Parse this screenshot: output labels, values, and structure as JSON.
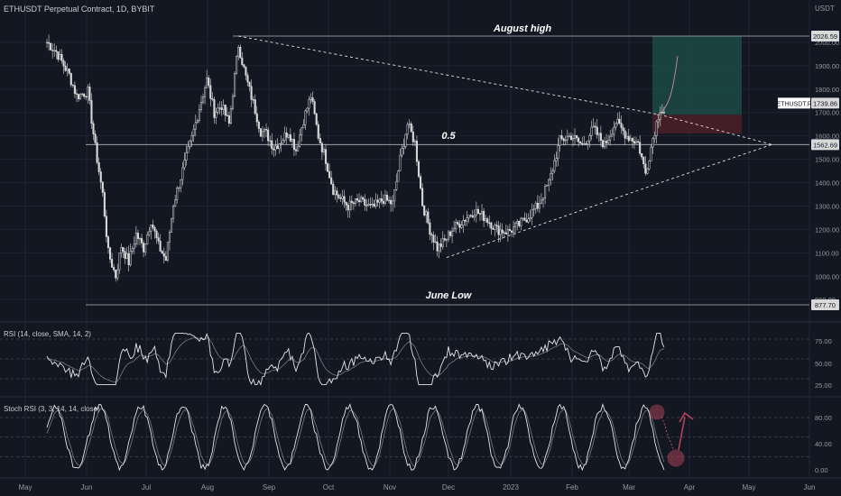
{
  "header": {
    "symbol_title": "ETHUSDT Perpetual Contract, 1D, BYBIT",
    "currency": "USDT"
  },
  "colors": {
    "background": "#131722",
    "candle": "#d9d9d9",
    "grid": "#1f2433",
    "profit_zone": "#1b4a45",
    "loss_zone": "#4a1f27",
    "accent_red": "#b2455a",
    "label_bg": "#d9d9d9"
  },
  "chart_data": [
    {
      "type": "candlestick",
      "name": "price",
      "title": "ETHUSDT Perpetual Contract, 1D, BYBIT",
      "y_axis_label": "USDT",
      "ylim": [
        877.7,
        2080
      ],
      "y_ticks": [
        900,
        1000,
        1100,
        1200,
        1300,
        1400,
        1500,
        1600,
        1700,
        1800,
        1900,
        2000
      ],
      "x_ticks": [
        "May",
        "Jun",
        "Jul",
        "Aug",
        "Sep",
        "Oct",
        "Nov",
        "Dec",
        "2023",
        "Feb",
        "Mar",
        "Apr",
        "May",
        "Jun"
      ],
      "close_path": [
        [
          0,
          2000
        ],
        [
          5,
          1960
        ],
        [
          12,
          1860
        ],
        [
          16,
          1770
        ],
        [
          22,
          1790
        ],
        [
          26,
          1550
        ],
        [
          30,
          1350
        ],
        [
          33,
          1100
        ],
        [
          37,
          1000
        ],
        [
          40,
          1130
        ],
        [
          44,
          1060
        ],
        [
          48,
          1180
        ],
        [
          52,
          1120
        ],
        [
          56,
          1240
        ],
        [
          60,
          1130
        ],
        [
          64,
          1070
        ],
        [
          68,
          1310
        ],
        [
          74,
          1480
        ],
        [
          78,
          1590
        ],
        [
          82,
          1720
        ],
        [
          86,
          1840
        ],
        [
          90,
          1700
        ],
        [
          94,
          1730
        ],
        [
          98,
          1650
        ],
        [
          103,
          1990
        ],
        [
          107,
          1850
        ],
        [
          111,
          1740
        ],
        [
          115,
          1620
        ],
        [
          118,
          1610
        ],
        [
          122,
          1550
        ],
        [
          126,
          1580
        ],
        [
          130,
          1620
        ],
        [
          134,
          1540
        ],
        [
          138,
          1670
        ],
        [
          142,
          1770
        ],
        [
          146,
          1600
        ],
        [
          150,
          1500
        ],
        [
          154,
          1370
        ],
        [
          158,
          1330
        ],
        [
          162,
          1300
        ],
        [
          168,
          1320
        ],
        [
          175,
          1290
        ],
        [
          181,
          1330
        ],
        [
          186,
          1310
        ],
        [
          190,
          1500
        ],
        [
          194,
          1650
        ],
        [
          198,
          1570
        ],
        [
          202,
          1310
        ],
        [
          206,
          1200
        ],
        [
          210,
          1120
        ],
        [
          214,
          1150
        ],
        [
          218,
          1200
        ],
        [
          224,
          1240
        ],
        [
          230,
          1280
        ],
        [
          236,
          1250
        ],
        [
          242,
          1200
        ],
        [
          248,
          1190
        ],
        [
          254,
          1220
        ],
        [
          258,
          1250
        ],
        [
          264,
          1300
        ],
        [
          270,
          1400
        ],
        [
          276,
          1580
        ],
        [
          282,
          1600
        ],
        [
          288,
          1560
        ],
        [
          294,
          1630
        ],
        [
          300,
          1560
        ],
        [
          306,
          1660
        ],
        [
          312,
          1600
        ],
        [
          318,
          1570
        ],
        [
          322,
          1440
        ],
        [
          326,
          1590
        ],
        [
          330,
          1720
        ],
        [
          332,
          1700
        ]
      ],
      "annotations": {
        "august_high": {
          "label": "August high",
          "value": 2026.59
        },
        "fib_half": {
          "label": "0.5",
          "value": 1562.69
        },
        "june_low": {
          "label": "June Low",
          "value": 877.7
        },
        "last_price": {
          "label": "ETHUSDT.P",
          "value": 1739.86
        },
        "position": {
          "entry": 1690,
          "stop": 1610,
          "target": 2026.59
        },
        "triangle": {
          "upper": [
            [
              103,
              2026.59
            ],
            [
              330,
              1690
            ],
            [
              390,
              1562.69
            ]
          ],
          "lower": [
            [
              215,
              1080
            ],
            [
              330,
              1400
            ],
            [
              390,
              1562.69
            ]
          ]
        }
      },
      "axis_price_labels": [
        "2026.59",
        "1739.86",
        "1562.69",
        "877.70"
      ],
      "grid": false
    },
    {
      "type": "line",
      "name": "rsi",
      "title": "RSI (14, close, SMA, 14, 2)",
      "ylim": [
        20,
        80
      ],
      "y_ticks": [
        25,
        50,
        75
      ],
      "levels": [
        30,
        50,
        70
      ],
      "tick_labels": [
        "75.00",
        "50.00",
        "25.00"
      ]
    },
    {
      "type": "line",
      "name": "stoch_rsi",
      "title": "Stoch RSI (3, 3, 14, 14, close)",
      "ylim": [
        -8,
        105
      ],
      "y_ticks": [
        0,
        40,
        80
      ],
      "levels": [
        20,
        50,
        80
      ],
      "tick_labels": [
        "80.00",
        "40.00",
        "0.00"
      ]
    }
  ]
}
